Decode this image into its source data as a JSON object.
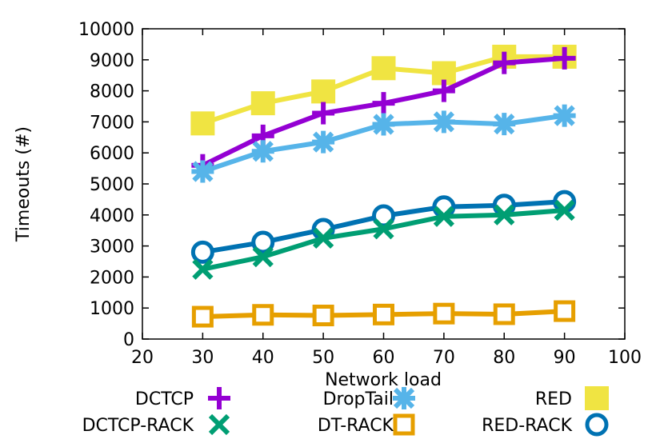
{
  "chart_data": {
    "type": "line",
    "xlabel": "Network load",
    "ylabel": "Timeouts (#)",
    "xlim": [
      20,
      100
    ],
    "ylim": [
      0,
      10000
    ],
    "x_ticks": [
      "20",
      "30",
      "40",
      "50",
      "60",
      "70",
      "80",
      "90",
      "100"
    ],
    "y_ticks": [
      "0",
      "1000",
      "2000",
      "3000",
      "4000",
      "5000",
      "6000",
      "7000",
      "8000",
      "9000",
      "10000"
    ],
    "x": [
      30,
      40,
      50,
      60,
      70,
      80,
      90
    ],
    "grid": false,
    "legend_position": "bottom",
    "series": [
      {
        "name": "DCTCP",
        "color": "#9400d3",
        "marker": "plus",
        "values": [
          5600,
          6550,
          7280,
          7600,
          8000,
          8900,
          9050
        ]
      },
      {
        "name": "DCTCP-RACK",
        "color": "#009e73",
        "marker": "cross",
        "values": [
          2250,
          2650,
          3250,
          3550,
          3950,
          4000,
          4150
        ]
      },
      {
        "name": "DropTail",
        "color": "#56b4e9",
        "marker": "asterisk",
        "values": [
          5400,
          6050,
          6350,
          6920,
          7000,
          6930,
          7200
        ]
      },
      {
        "name": "DT-RACK",
        "color": "#e69f00",
        "marker": "open-square",
        "values": [
          720,
          780,
          760,
          790,
          820,
          800,
          900
        ]
      },
      {
        "name": "RED",
        "color": "#f0e442",
        "marker": "filled-square",
        "values": [
          6950,
          7600,
          7980,
          8730,
          8570,
          9100,
          9100
        ]
      },
      {
        "name": "RED-RACK",
        "color": "#0072b2",
        "marker": "open-circle",
        "values": [
          2800,
          3120,
          3530,
          3970,
          4260,
          4310,
          4430
        ]
      }
    ]
  }
}
